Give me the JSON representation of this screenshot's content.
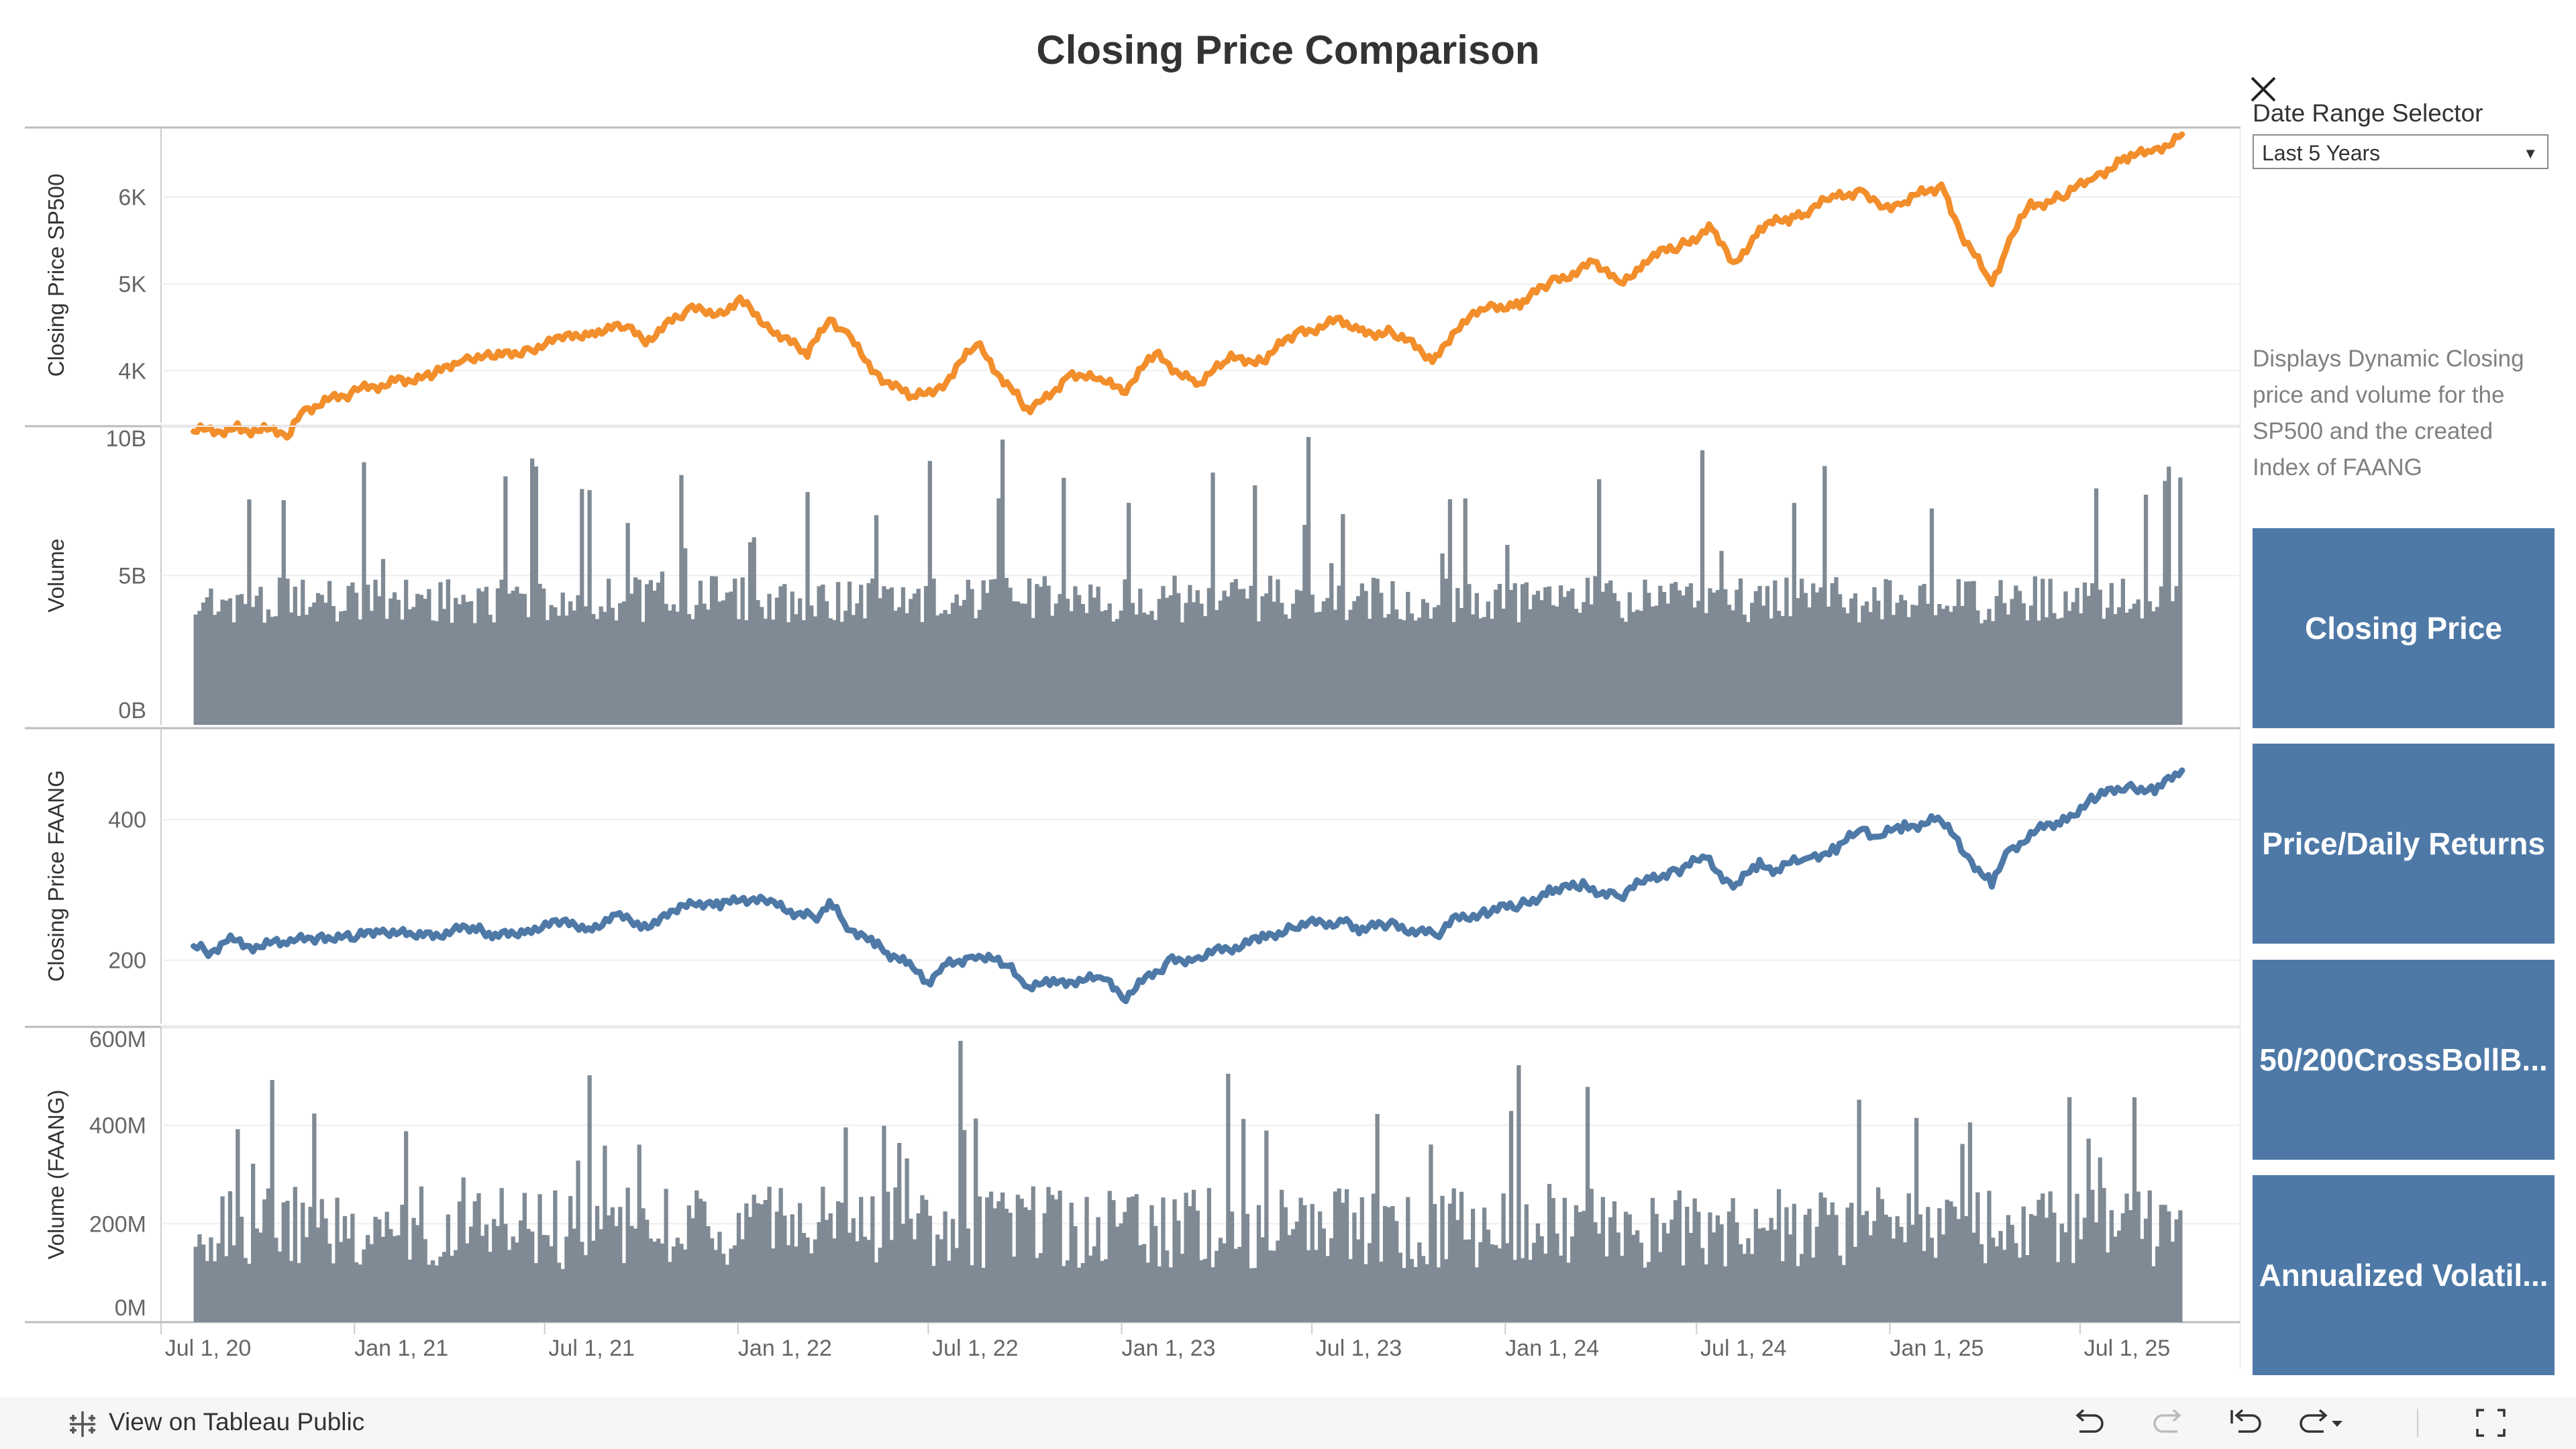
{
  "title": "Closing Price Comparison",
  "filter": {
    "label": "Date Range Selector",
    "selected": "Last 5 Years"
  },
  "description": "Displays Dynamic Closing price and volume for the SP500 and the created Index of FAANG",
  "nav_buttons": [
    "Closing Price",
    "Price/Daily Returns",
    "50/200CrossBollB...",
    "Annualized Volatil..."
  ],
  "footer": {
    "view_on": "View on Tableau Public"
  },
  "colors": {
    "sp500_line": "#f28e2b",
    "faang_line": "#4e79a7",
    "volume_bars": "#7f8a94",
    "button_bg": "#4e79a7"
  },
  "icons": [
    "close-icon",
    "chevron-down-icon",
    "tableau-logo-icon",
    "undo-icon",
    "redo-icon",
    "revert-icon",
    "refresh-icon",
    "fullscreen-icon"
  ],
  "chart_data": [
    {
      "type": "line",
      "ylabel": "Closing Price SP500",
      "y_ticks": [
        "4K",
        "5K",
        "6K"
      ],
      "ylim": [
        3400,
        6800
      ],
      "series": [
        {
          "values": [
            [
              "2020-08-01",
              3300
            ],
            [
              "2020-09-15",
              3330
            ],
            [
              "2020-11-01",
              3290
            ],
            [
              "2020-11-15",
              3560
            ],
            [
              "2021-01-01",
              3760
            ],
            [
              "2021-02-15",
              3900
            ],
            [
              "2021-03-15",
              3920
            ],
            [
              "2021-04-15",
              4170
            ],
            [
              "2021-05-15",
              4150
            ],
            [
              "2021-06-15",
              4250
            ],
            [
              "2021-07-15",
              4350
            ],
            [
              "2021-08-15",
              4460
            ],
            [
              "2021-09-15",
              4500
            ],
            [
              "2021-10-05",
              4350
            ],
            [
              "2021-11-15",
              4700
            ],
            [
              "2021-12-15",
              4680
            ],
            [
              "2022-01-03",
              4800
            ],
            [
              "2022-02-01",
              4500
            ],
            [
              "2022-03-08",
              4170
            ],
            [
              "2022-03-29",
              4630
            ],
            [
              "2022-04-15",
              4400
            ],
            [
              "2022-05-15",
              3950
            ],
            [
              "2022-06-16",
              3670
            ],
            [
              "2022-07-15",
              3850
            ],
            [
              "2022-08-16",
              4300
            ],
            [
              "2022-09-30",
              3590
            ],
            [
              "2022-10-12",
              3580
            ],
            [
              "2022-11-15",
              3990
            ],
            [
              "2022-12-15",
              3850
            ],
            [
              "2023-01-05",
              3810
            ],
            [
              "2023-02-02",
              4180
            ],
            [
              "2023-03-13",
              3850
            ],
            [
              "2023-04-15",
              4130
            ],
            [
              "2023-05-15",
              4130
            ],
            [
              "2023-06-15",
              4420
            ],
            [
              "2023-07-31",
              4590
            ],
            [
              "2023-08-15",
              4430
            ],
            [
              "2023-09-15",
              4450
            ],
            [
              "2023-10-27",
              4120
            ],
            [
              "2023-11-15",
              4500
            ],
            [
              "2023-12-15",
              4720
            ],
            [
              "2024-01-15",
              4780
            ],
            [
              "2024-02-15",
              5020
            ],
            [
              "2024-03-28",
              5250
            ],
            [
              "2024-04-19",
              4970
            ],
            [
              "2024-05-15",
              5300
            ],
            [
              "2024-06-15",
              5430
            ],
            [
              "2024-07-16",
              5660
            ],
            [
              "2024-08-05",
              5190
            ],
            [
              "2024-08-30",
              5650
            ],
            [
              "2024-09-30",
              5760
            ],
            [
              "2024-10-15",
              5850
            ],
            [
              "2024-11-11",
              6000
            ],
            [
              "2024-12-06",
              6090
            ],
            [
              "2024-12-20",
              5880
            ],
            [
              "2025-01-15",
              5950
            ],
            [
              "2025-02-19",
              6140
            ],
            [
              "2025-03-13",
              5520
            ],
            [
              "2025-04-08",
              4980
            ],
            [
              "2025-04-25",
              5520
            ],
            [
              "2025-05-15",
              5900
            ],
            [
              "2025-06-15",
              6000
            ],
            [
              "2025-07-15",
              6240
            ],
            [
              "2025-08-15",
              6450
            ],
            [
              "2025-09-10",
              6530
            ],
            [
              "2025-10-06",
              6720
            ]
          ]
        }
      ]
    },
    {
      "type": "bar",
      "ylabel": "Volume",
      "y_ticks": [
        "0B",
        "5B",
        "10B"
      ],
      "ylim": [
        0,
        10000000000
      ],
      "date_range": [
        "2020-08-01",
        "2025-10-06"
      ]
    },
    {
      "type": "line",
      "ylabel": "Closing Price FAANG",
      "y_ticks": [
        "200",
        "400"
      ],
      "ylim": [
        110,
        530
      ],
      "series": [
        {
          "values": [
            [
              "2020-08-01",
              220
            ],
            [
              "2020-08-15",
              210
            ],
            [
              "2020-09-02",
              230
            ],
            [
              "2020-09-20",
              220
            ],
            [
              "2020-11-01",
              225
            ],
            [
              "2020-12-01",
              235
            ],
            [
              "2021-01-01",
              230
            ],
            [
              "2021-01-25",
              245
            ],
            [
              "2021-03-01",
              232
            ],
            [
              "2021-04-30",
              248
            ],
            [
              "2021-05-15",
              232
            ],
            [
              "2021-06-15",
              245
            ],
            [
              "2021-07-15",
              252
            ],
            [
              "2021-08-15",
              248
            ],
            [
              "2021-09-07",
              262
            ],
            [
              "2021-10-04",
              250
            ],
            [
              "2021-11-01",
              265
            ],
            [
              "2021-11-19",
              285
            ],
            [
              "2021-12-15",
              275
            ],
            [
              "2022-01-03",
              290
            ],
            [
              "2022-02-01",
              280
            ],
            [
              "2022-03-14",
              260
            ],
            [
              "2022-03-29",
              280
            ],
            [
              "2022-04-15",
              250
            ],
            [
              "2022-05-11",
              220
            ],
            [
              "2022-05-20",
              215
            ],
            [
              "2022-06-13",
              190
            ],
            [
              "2022-06-30",
              170
            ],
            [
              "2022-07-15",
              190
            ],
            [
              "2022-08-15",
              210
            ],
            [
              "2022-09-15",
              190
            ],
            [
              "2022-10-01",
              165
            ],
            [
              "2022-10-28",
              165
            ],
            [
              "2022-11-15",
              172
            ],
            [
              "2022-12-15",
              172
            ],
            [
              "2023-01-05",
              150
            ],
            [
              "2023-02-15",
              198
            ],
            [
              "2023-03-15",
              205
            ],
            [
              "2023-05-15",
              230
            ],
            [
              "2023-06-15",
              250
            ],
            [
              "2023-07-31",
              255
            ],
            [
              "2023-08-15",
              245
            ],
            [
              "2023-09-15",
              250
            ],
            [
              "2023-10-27",
              235
            ],
            [
              "2023-11-15",
              258
            ],
            [
              "2023-12-15",
              270
            ],
            [
              "2024-01-15",
              278
            ],
            [
              "2024-02-15",
              300
            ],
            [
              "2024-03-15",
              305
            ],
            [
              "2024-04-19",
              290
            ],
            [
              "2024-05-15",
              315
            ],
            [
              "2024-06-15",
              330
            ],
            [
              "2024-07-10",
              345
            ],
            [
              "2024-08-05",
              305
            ],
            [
              "2024-08-30",
              335
            ],
            [
              "2024-09-15",
              330
            ],
            [
              "2024-10-15",
              345
            ],
            [
              "2024-11-11",
              360
            ],
            [
              "2024-12-06",
              385
            ],
            [
              "2024-12-20",
              375
            ],
            [
              "2025-01-15",
              390
            ],
            [
              "2025-02-19",
              400
            ],
            [
              "2025-03-13",
              352
            ],
            [
              "2025-04-08",
              310
            ],
            [
              "2025-04-25",
              355
            ],
            [
              "2025-05-15",
              380
            ],
            [
              "2025-06-15",
              400
            ],
            [
              "2025-07-15",
              430
            ],
            [
              "2025-08-15",
              450
            ],
            [
              "2025-09-10",
              440
            ],
            [
              "2025-10-06",
              470
            ]
          ]
        }
      ]
    },
    {
      "type": "bar",
      "ylabel": "Volume (FAANG)",
      "y_ticks": [
        "0M",
        "200M",
        "400M",
        "600M"
      ],
      "ylim": [
        0,
        600000000
      ],
      "date_range": [
        "2020-08-01",
        "2025-10-06"
      ]
    }
  ],
  "x_axis": {
    "ticks": [
      {
        "label": "Jul 1, 20",
        "date": "2020-07-01"
      },
      {
        "label": "Jan 1, 21",
        "date": "2021-01-01"
      },
      {
        "label": "Jul 1, 21",
        "date": "2021-07-01"
      },
      {
        "label": "Jan 1, 22",
        "date": "2022-01-01"
      },
      {
        "label": "Jul 1, 22",
        "date": "2022-07-01"
      },
      {
        "label": "Jan 1, 23",
        "date": "2023-01-01"
      },
      {
        "label": "Jul 1, 23",
        "date": "2023-07-01"
      },
      {
        "label": "Jan 1, 24",
        "date": "2024-01-01"
      },
      {
        "label": "Jul 1, 24",
        "date": "2024-07-01"
      },
      {
        "label": "Jan 1, 25",
        "date": "2025-01-01"
      },
      {
        "label": "Jul 1, 25",
        "date": "2025-07-01"
      }
    ]
  }
}
